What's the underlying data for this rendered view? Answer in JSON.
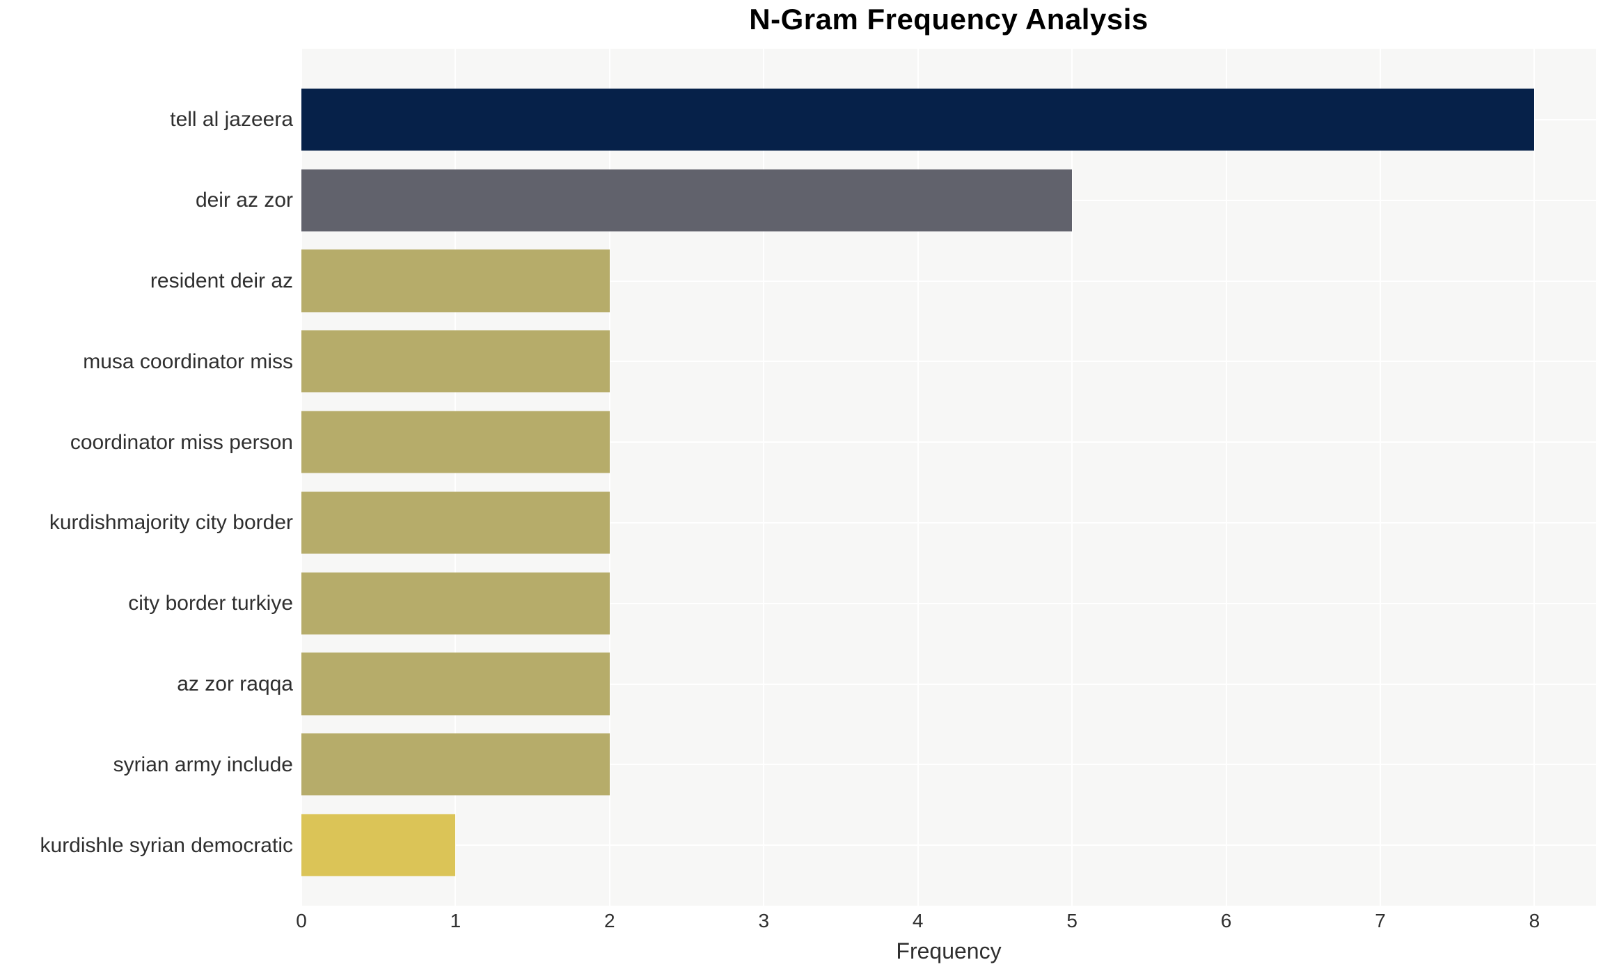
{
  "chart_data": {
    "type": "bar",
    "orientation": "horizontal",
    "title": "N-Gram Frequency Analysis",
    "xlabel": "Frequency",
    "ylabel": "",
    "categories": [
      "tell al jazeera",
      "deir az zor",
      "resident deir az",
      "musa coordinator miss",
      "coordinator miss person",
      "kurdishmajority city border",
      "city border turkiye",
      "az zor raqqa",
      "syrian army include",
      "kurdishle syrian democratic"
    ],
    "values": [
      8,
      5,
      2,
      2,
      2,
      2,
      2,
      2,
      2,
      1
    ],
    "colors": [
      "#062149",
      "#61626c",
      "#b6ac6a",
      "#b6ac6a",
      "#b6ac6a",
      "#b6ac6a",
      "#b6ac6a",
      "#b6ac6a",
      "#b6ac6a",
      "#dbc457"
    ],
    "xticks": [
      0,
      1,
      2,
      3,
      4,
      5,
      6,
      7,
      8
    ],
    "xlim": [
      0,
      8.4
    ],
    "grid": "on",
    "legend": "none",
    "plot_background": "#f7f7f6",
    "gridline_color": "#ffffff",
    "title_color": "#000000",
    "text_color": "#2f2f2f"
  }
}
